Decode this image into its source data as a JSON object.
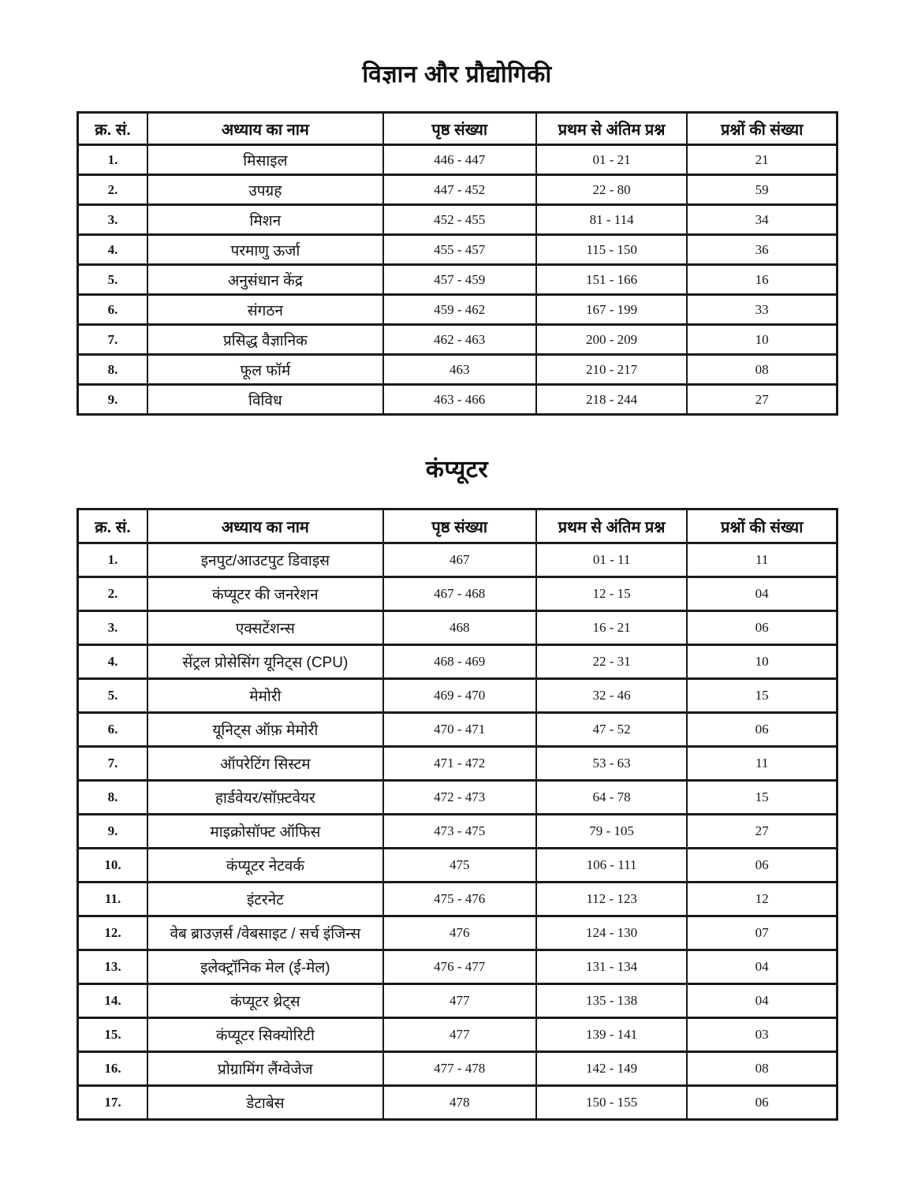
{
  "colors": {
    "ink": "#1a1a1a",
    "paper": "#ffffff"
  },
  "sections": [
    {
      "title": "विज्ञान और प्रौद्योगिकी",
      "headers": {
        "serial": "क्र. सं.",
        "chapter": "अध्याय का नाम",
        "pages": "पृष्ठ संख्या",
        "range": "प्रथम से अंतिम प्रश्न",
        "count": "प्रश्नों की संख्या"
      },
      "rows": [
        {
          "serial": "1.",
          "chapter": "मिसाइल",
          "pages": "446 - 447",
          "range": "01 - 21",
          "count": "21"
        },
        {
          "serial": "2.",
          "chapter": "उपग्रह",
          "pages": "447 - 452",
          "range": "22 - 80",
          "count": "59"
        },
        {
          "serial": "3.",
          "chapter": "मिशन",
          "pages": "452 - 455",
          "range": "81 - 114",
          "count": "34"
        },
        {
          "serial": "4.",
          "chapter": "परमाणु ऊर्जा",
          "pages": "455 - 457",
          "range": "115 - 150",
          "count": "36"
        },
        {
          "serial": "5.",
          "chapter": "अनुसंधान केंद्र",
          "pages": "457 - 459",
          "range": "151 - 166",
          "count": "16"
        },
        {
          "serial": "6.",
          "chapter": "संगठन",
          "pages": "459 - 462",
          "range": "167 - 199",
          "count": "33"
        },
        {
          "serial": "7.",
          "chapter": "प्रसिद्ध वैज्ञानिक",
          "pages": "462 - 463",
          "range": "200 - 209",
          "count": "10"
        },
        {
          "serial": "8.",
          "chapter": "फूल फॉर्म",
          "pages": "463",
          "range": "210 - 217",
          "count": "08"
        },
        {
          "serial": "9.",
          "chapter": "विविध",
          "pages": "463 - 466",
          "range": "218 - 244",
          "count": "27"
        }
      ]
    },
    {
      "title": "कंप्यूटर",
      "headers": {
        "serial": "क्र. सं.",
        "chapter": "अध्याय का नाम",
        "pages": "पृष्ठ संख्या",
        "range": "प्रथम से अंतिम प्रश्न",
        "count": "प्रश्नों की संख्या"
      },
      "rows": [
        {
          "serial": "1.",
          "chapter": "इनपुट/आउटपुट डिवाइस",
          "pages": "467",
          "range": "01 - 11",
          "count": "11"
        },
        {
          "serial": "2.",
          "chapter": "कंप्यूटर की जनरेशन",
          "pages": "467 - 468",
          "range": "12 - 15",
          "count": "04"
        },
        {
          "serial": "3.",
          "chapter": "एक्सटेंशन्स",
          "pages": "468",
          "range": "16 - 21",
          "count": "06"
        },
        {
          "serial": "4.",
          "chapter": "सेंट्रल प्रोसेसिंग यूनिट्स (CPU)",
          "pages": "468 - 469",
          "range": "22 - 31",
          "count": "10"
        },
        {
          "serial": "5.",
          "chapter": "मेमोरी",
          "pages": "469 - 470",
          "range": "32 - 46",
          "count": "15"
        },
        {
          "serial": "6.",
          "chapter": "यूनिट्स ऑफ़ मेमोरी",
          "pages": "470 - 471",
          "range": "47 - 52",
          "count": "06"
        },
        {
          "serial": "7.",
          "chapter": "ऑपरेटिंग सिस्टम",
          "pages": "471 - 472",
          "range": "53 - 63",
          "count": "11"
        },
        {
          "serial": "8.",
          "chapter": "हार्डवेयर/सॉफ़्टवेयर",
          "pages": "472 - 473",
          "range": "64 - 78",
          "count": "15"
        },
        {
          "serial": "9.",
          "chapter": "माइक्रोसॉफ्ट ऑफिस",
          "pages": "473 - 475",
          "range": "79 - 105",
          "count": "27"
        },
        {
          "serial": "10.",
          "chapter": "कंप्यूटर नेटवर्क",
          "pages": "475",
          "range": "106 - 111",
          "count": "06"
        },
        {
          "serial": "11.",
          "chapter": "इंटरनेट",
          "pages": "475 - 476",
          "range": "112 - 123",
          "count": "12"
        },
        {
          "serial": "12.",
          "chapter": "वेब ब्राउज़र्स /वेबसाइट / सर्च इंजिन्स",
          "pages": "476",
          "range": "124 - 130",
          "count": "07"
        },
        {
          "serial": "13.",
          "chapter": "इलेक्ट्रॉनिक मेल (ई-मेल)",
          "pages": "476 - 477",
          "range": "131 - 134",
          "count": "04"
        },
        {
          "serial": "14.",
          "chapter": "कंप्यूटर थ्रेट्स",
          "pages": "477",
          "range": "135 - 138",
          "count": "04"
        },
        {
          "serial": "15.",
          "chapter": "कंप्यूटर सिक्योरिटी",
          "pages": "477",
          "range": "139 - 141",
          "count": "03"
        },
        {
          "serial": "16.",
          "chapter": "प्रोग्रामिंग लैंग्वेजेज",
          "pages": "477 - 478",
          "range": "142 - 149",
          "count": "08"
        },
        {
          "serial": "17.",
          "chapter": "डेटाबेस",
          "pages": "478",
          "range": "150 - 155",
          "count": "06"
        }
      ]
    }
  ]
}
